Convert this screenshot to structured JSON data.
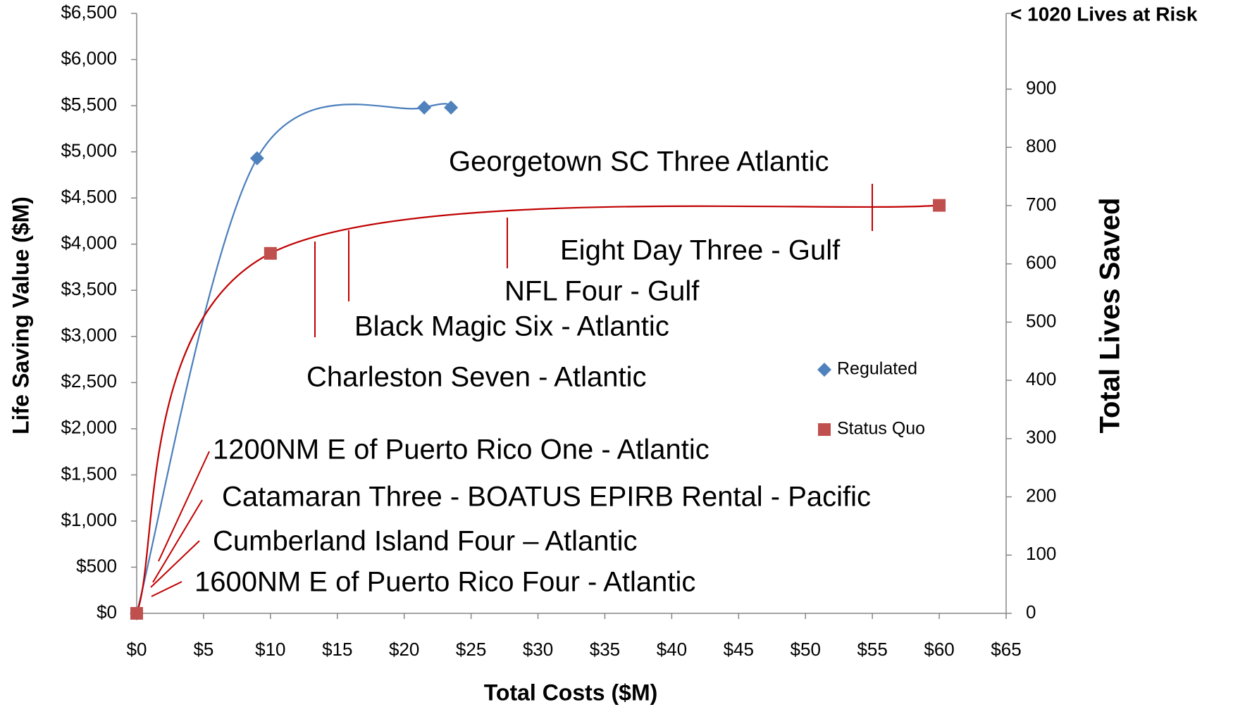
{
  "chart_data": {
    "type": "scatter",
    "xlabel": "Total Costs ($M)",
    "ylabel": "Life Saving Value ($M)",
    "y2label": "Total Lives Saved",
    "y2top_label": "< 1020 Lives at Risk",
    "xlim": [
      0,
      65
    ],
    "xticks": [
      {
        "value": 0,
        "label": "$0"
      },
      {
        "value": 5,
        "label": "$5"
      },
      {
        "value": 10,
        "label": "$10"
      },
      {
        "value": 15,
        "label": "$15"
      },
      {
        "value": 20,
        "label": "$20"
      },
      {
        "value": 25,
        "label": "$25"
      },
      {
        "value": 30,
        "label": "$30"
      },
      {
        "value": 35,
        "label": "$35"
      },
      {
        "value": 40,
        "label": "$40"
      },
      {
        "value": 45,
        "label": "$45"
      },
      {
        "value": 50,
        "label": "$50"
      },
      {
        "value": 55,
        "label": "$55"
      },
      {
        "value": 60,
        "label": "$60"
      },
      {
        "value": 65,
        "label": "$65"
      }
    ],
    "ylim": [
      0,
      6500
    ],
    "yticks": [
      {
        "value": 0,
        "label": "$0"
      },
      {
        "value": 500,
        "label": "$500"
      },
      {
        "value": 1000,
        "label": "$1,000"
      },
      {
        "value": 1500,
        "label": "$1,500"
      },
      {
        "value": 2000,
        "label": "$2,000"
      },
      {
        "value": 2500,
        "label": "$2,500"
      },
      {
        "value": 3000,
        "label": "$3,000"
      },
      {
        "value": 3500,
        "label": "$3,500"
      },
      {
        "value": 4000,
        "label": "$4,000"
      },
      {
        "value": 4500,
        "label": "$4,500"
      },
      {
        "value": 5000,
        "label": "$5,000"
      },
      {
        "value": 5500,
        "label": "$5,500"
      },
      {
        "value": 6000,
        "label": "$6,000"
      },
      {
        "value": 6500,
        "label": "$6,500"
      }
    ],
    "y2lim": [
      0,
      1030
    ],
    "y2ticks": [
      0,
      100,
      200,
      300,
      400,
      500,
      600,
      700,
      800,
      900
    ],
    "grid": false,
    "series": [
      {
        "name": "Regulated",
        "color": "#4f81bd",
        "line_color": "#4a7ebb",
        "marker": "diamond",
        "x": [
          0,
          9,
          21.5,
          23.5
        ],
        "values": [
          0,
          4930,
          5480,
          5480
        ]
      },
      {
        "name": "Status Quo",
        "color": "#c0504d",
        "line_color": "#c00000",
        "marker": "square",
        "x": [
          0,
          10,
          60
        ],
        "values": [
          0,
          3900,
          4420
        ]
      }
    ],
    "annotations": [
      "Georgetown SC Three  Atlantic",
      "Eight Day Three -  Gulf",
      "NFL Four - Gulf",
      "Black Magic Six - Atlantic",
      "Charleston Seven - Atlantic",
      "1200NM E of Puerto Rico One - Atlantic",
      "Catamaran Three - BOATUS EPIRB Rental - Pacific",
      "Cumberland Island Four – Atlantic",
      "1600NM E of Puerto Rico Four - Atlantic"
    ]
  }
}
